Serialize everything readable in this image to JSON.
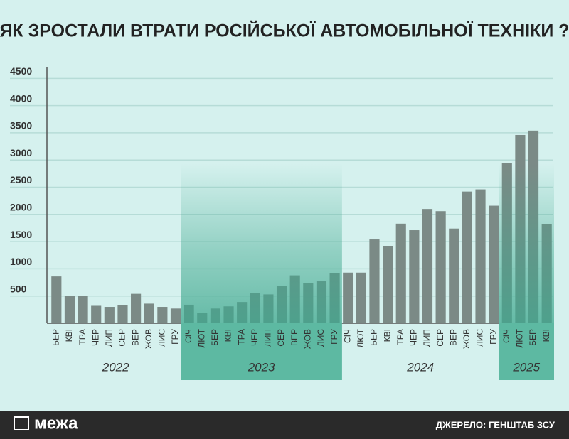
{
  "chart_data": {
    "type": "bar",
    "title": "ЯК ЗРОСТАЛИ ВТРАТИ РОСІЙСЬКОЇ АВТОМОБІЛЬНОЇ ТЕХНІКИ ?",
    "categories": [
      "БЕР",
      "КВІ",
      "ТРА",
      "ЧЕР",
      "ЛИП",
      "СЕР",
      "ВЕР",
      "ЖОВ",
      "ЛИС",
      "ГРУ",
      "СІЧ",
      "ЛЮТ",
      "БЕР",
      "КВІ",
      "ТРА",
      "ЧЕР",
      "ЛИП",
      "СЕР",
      "ВЕР",
      "ЖОВ",
      "ЛИС",
      "ГРУ",
      "СІЧ",
      "ЛЮТ",
      "БЕР",
      "КВІ",
      "ТРА",
      "ЧЕР",
      "ЛИП",
      "СЕР",
      "ВЕР",
      "ЖОВ",
      "ЛИС",
      "ГРУ",
      "СІЧ",
      "ЛЮТ",
      "БЕР",
      "КВІ"
    ],
    "values": [
      860,
      500,
      500,
      320,
      300,
      330,
      540,
      360,
      300,
      270,
      340,
      190,
      270,
      310,
      390,
      560,
      530,
      680,
      880,
      740,
      770,
      920,
      930,
      930,
      1540,
      1420,
      1830,
      1710,
      2100,
      2060,
      1740,
      2420,
      2460,
      2160,
      2940,
      3460,
      3540,
      1820
    ],
    "years": [
      "2022",
      "2023",
      "2024",
      "2025"
    ],
    "color": "#7b8a86",
    "ylim": [
      0,
      4700
    ],
    "yticks": [
      500,
      1000,
      1500,
      2000,
      2500,
      3000,
      3500,
      4000,
      4500
    ],
    "grid": true
  },
  "footer": {
    "logo": "межа",
    "source": "ДЖЕРЕЛО: ГЕНШТАБ ЗСУ"
  }
}
